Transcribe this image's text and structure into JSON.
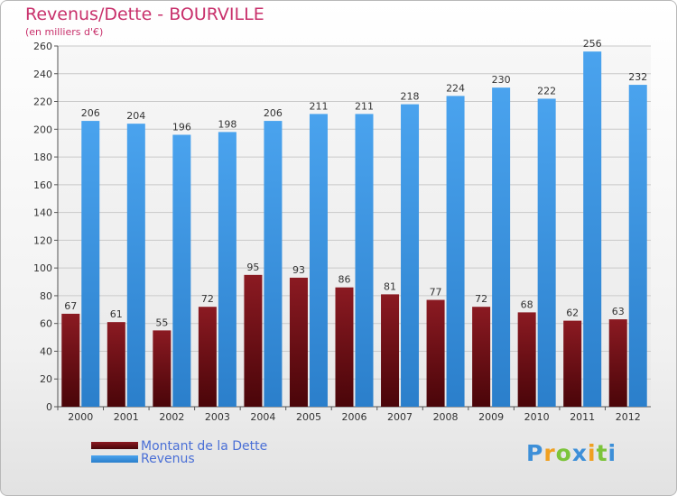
{
  "chart_data": {
    "type": "bar",
    "title": "Revenus/Dette - BOURVILLE",
    "subtitle": "(en milliers d'€)",
    "categories": [
      "2000",
      "2001",
      "2002",
      "2003",
      "2004",
      "2005",
      "2006",
      "2007",
      "2008",
      "2009",
      "2010",
      "2011",
      "2012"
    ],
    "series": [
      {
        "name": "Montant de la Dette",
        "color": "#7a1016",
        "values": [
          67,
          61,
          55,
          72,
          95,
          93,
          86,
          81,
          77,
          72,
          68,
          62,
          63
        ]
      },
      {
        "name": "Revenus",
        "color": "#3d96e0",
        "values": [
          206,
          204,
          196,
          198,
          206,
          211,
          211,
          218,
          224,
          230,
          222,
          256,
          232
        ]
      }
    ],
    "ylim": [
      0,
      260
    ],
    "yticks": [
      0,
      20,
      40,
      60,
      80,
      100,
      120,
      140,
      160,
      180,
      200,
      220,
      240,
      260
    ],
    "grid": true,
    "legend_position": "bottom-left"
  },
  "brand": {
    "logo_letters": [
      "P",
      "r",
      "o",
      "x",
      "i",
      "t",
      "i"
    ]
  }
}
